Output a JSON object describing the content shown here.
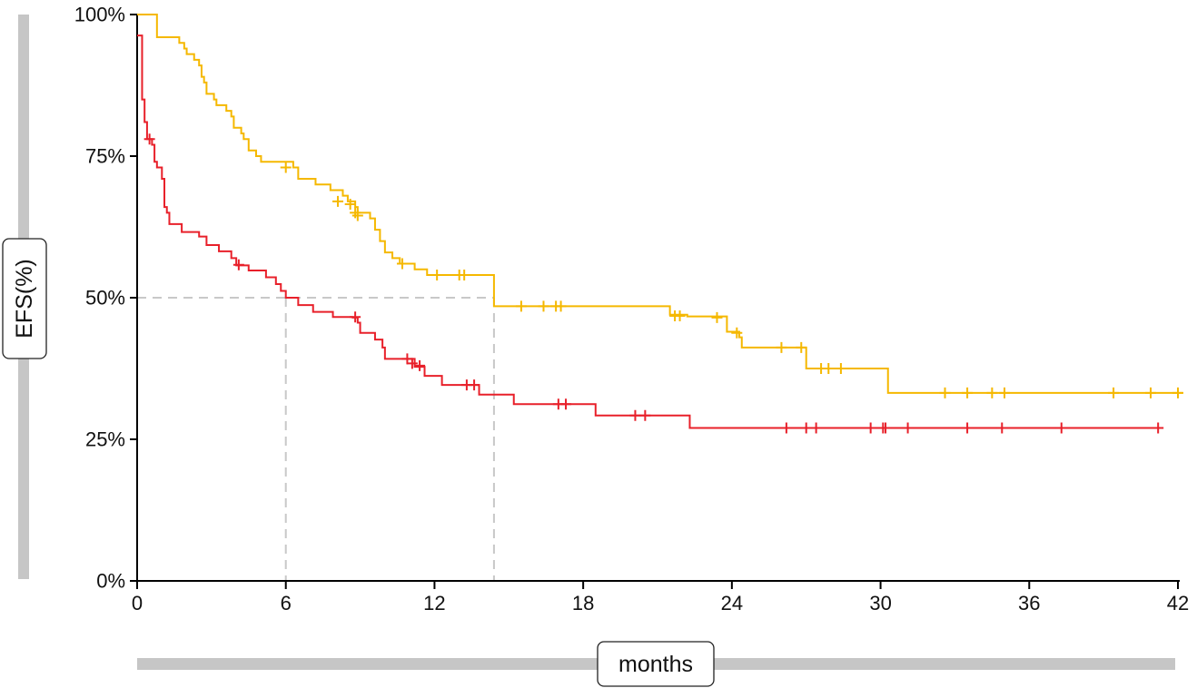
{
  "chart_data": {
    "type": "line",
    "title": "",
    "xlabel": "months",
    "ylabel": "EFS(%)",
    "xlim": [
      0,
      42
    ],
    "ylim": [
      0,
      100
    ],
    "x_ticks": [
      0,
      6,
      12,
      18,
      24,
      30,
      36,
      42
    ],
    "y_ticks": [
      {
        "value": 0,
        "label": "0%"
      },
      {
        "value": 25,
        "label": "25%"
      },
      {
        "value": 50,
        "label": "50%"
      },
      {
        "value": 75,
        "label": "75%"
      },
      {
        "value": 100,
        "label": "100%"
      }
    ],
    "grid": false,
    "legend": "none",
    "colors": {
      "series_1": "#f5b800",
      "series_2": "#e8202a",
      "reference": "#c8c8c8"
    },
    "median_reference": {
      "y": 50,
      "x_values": [
        6.0,
        14.4
      ]
    },
    "series": [
      {
        "color": "#f5b800",
        "steps": [
          [
            0,
            100
          ],
          [
            0.8,
            96
          ],
          [
            1.7,
            95
          ],
          [
            1.9,
            94
          ],
          [
            2.0,
            93
          ],
          [
            2.3,
            92
          ],
          [
            2.5,
            91
          ],
          [
            2.6,
            89
          ],
          [
            2.7,
            88
          ],
          [
            2.8,
            86
          ],
          [
            3.1,
            85
          ],
          [
            3.2,
            84
          ],
          [
            3.6,
            83
          ],
          [
            3.8,
            82
          ],
          [
            3.9,
            80
          ],
          [
            4.2,
            79
          ],
          [
            4.3,
            78
          ],
          [
            4.5,
            76
          ],
          [
            4.8,
            75
          ],
          [
            5.0,
            74
          ],
          [
            6.3,
            73
          ],
          [
            6.5,
            71
          ],
          [
            7.2,
            70
          ],
          [
            7.8,
            69
          ],
          [
            8.3,
            68
          ],
          [
            8.5,
            67
          ],
          [
            8.8,
            66
          ],
          [
            8.9,
            65
          ],
          [
            9.4,
            64
          ],
          [
            9.6,
            62
          ],
          [
            9.8,
            60
          ],
          [
            10.0,
            58
          ],
          [
            10.3,
            57
          ],
          [
            10.6,
            56
          ],
          [
            11.2,
            55
          ],
          [
            11.7,
            54
          ],
          [
            12.4,
            54
          ],
          [
            14.4,
            48.5
          ],
          [
            21.5,
            47
          ],
          [
            22.2,
            46.7
          ],
          [
            23.8,
            44
          ],
          [
            24.3,
            43
          ],
          [
            24.4,
            41.2
          ],
          [
            27.0,
            37.5
          ],
          [
            30.3,
            33.2
          ]
        ],
        "end_x": 42.2,
        "censored": [
          [
            6.0,
            73
          ],
          [
            8.1,
            67
          ],
          [
            8.6,
            66.5
          ],
          [
            8.8,
            65
          ],
          [
            8.9,
            64.5
          ],
          [
            10.7,
            56
          ],
          [
            12.1,
            54
          ],
          [
            13.0,
            54
          ],
          [
            13.2,
            54
          ],
          [
            15.5,
            48.5
          ],
          [
            16.4,
            48.5
          ],
          [
            16.9,
            48.5
          ],
          [
            17.1,
            48.5
          ],
          [
            21.7,
            46.8
          ],
          [
            21.9,
            46.8
          ],
          [
            23.4,
            46.5
          ],
          [
            24.2,
            43.8
          ],
          [
            26.0,
            41.2
          ],
          [
            26.8,
            41.2
          ],
          [
            27.6,
            37.5
          ],
          [
            27.9,
            37.5
          ],
          [
            28.4,
            37.5
          ],
          [
            32.6,
            33.2
          ],
          [
            33.5,
            33.2
          ],
          [
            34.5,
            33.2
          ],
          [
            35.0,
            33.2
          ],
          [
            39.4,
            33.2
          ],
          [
            40.9,
            33.2
          ],
          [
            42.0,
            33.2
          ]
        ]
      },
      {
        "color": "#e8202a",
        "steps": [
          [
            0,
            96.3
          ],
          [
            0.2,
            85
          ],
          [
            0.3,
            81
          ],
          [
            0.4,
            78
          ],
          [
            0.6,
            77
          ],
          [
            0.7,
            74
          ],
          [
            0.8,
            73
          ],
          [
            1.0,
            71
          ],
          [
            1.1,
            66
          ],
          [
            1.2,
            65
          ],
          [
            1.3,
            63
          ],
          [
            1.8,
            61.6
          ],
          [
            2.5,
            60.8
          ],
          [
            2.8,
            59.3
          ],
          [
            3.3,
            58.2
          ],
          [
            3.8,
            57
          ],
          [
            4.0,
            55.7
          ],
          [
            4.5,
            54.8
          ],
          [
            5.2,
            53.6
          ],
          [
            5.6,
            52.4
          ],
          [
            5.8,
            51.2
          ],
          [
            6.0,
            50
          ],
          [
            6.5,
            48.7
          ],
          [
            7.1,
            47.5
          ],
          [
            7.9,
            46.6
          ],
          [
            8.7,
            46.5
          ],
          [
            8.9,
            45.6
          ],
          [
            9.0,
            43.8
          ],
          [
            9.6,
            42.6
          ],
          [
            9.9,
            41.2
          ],
          [
            10.0,
            39.2
          ],
          [
            11.2,
            37.8
          ],
          [
            11.6,
            36.2
          ],
          [
            12.3,
            34.6
          ],
          [
            13.8,
            32.9
          ],
          [
            15.2,
            31.2
          ],
          [
            18.5,
            29.2
          ],
          [
            22.3,
            27.0
          ]
        ],
        "end_x": 41.4,
        "censored": [
          [
            0.5,
            78
          ],
          [
            4.1,
            55.8
          ],
          [
            8.8,
            46.6
          ],
          [
            10.9,
            39.2
          ],
          [
            11.1,
            38.4
          ],
          [
            11.4,
            38.0
          ],
          [
            13.3,
            34.6
          ],
          [
            13.6,
            34.6
          ],
          [
            17.0,
            31.2
          ],
          [
            17.3,
            31.2
          ],
          [
            20.1,
            29.2
          ],
          [
            20.5,
            29.2
          ],
          [
            26.2,
            27.0
          ],
          [
            27.0,
            27.0
          ],
          [
            27.4,
            27.0
          ],
          [
            29.6,
            27.0
          ],
          [
            30.1,
            27.0
          ],
          [
            30.2,
            27.0
          ],
          [
            31.1,
            27.0
          ],
          [
            33.5,
            27.0
          ],
          [
            34.9,
            27.0
          ],
          [
            37.3,
            27.0
          ],
          [
            41.2,
            27.0
          ]
        ]
      }
    ]
  }
}
